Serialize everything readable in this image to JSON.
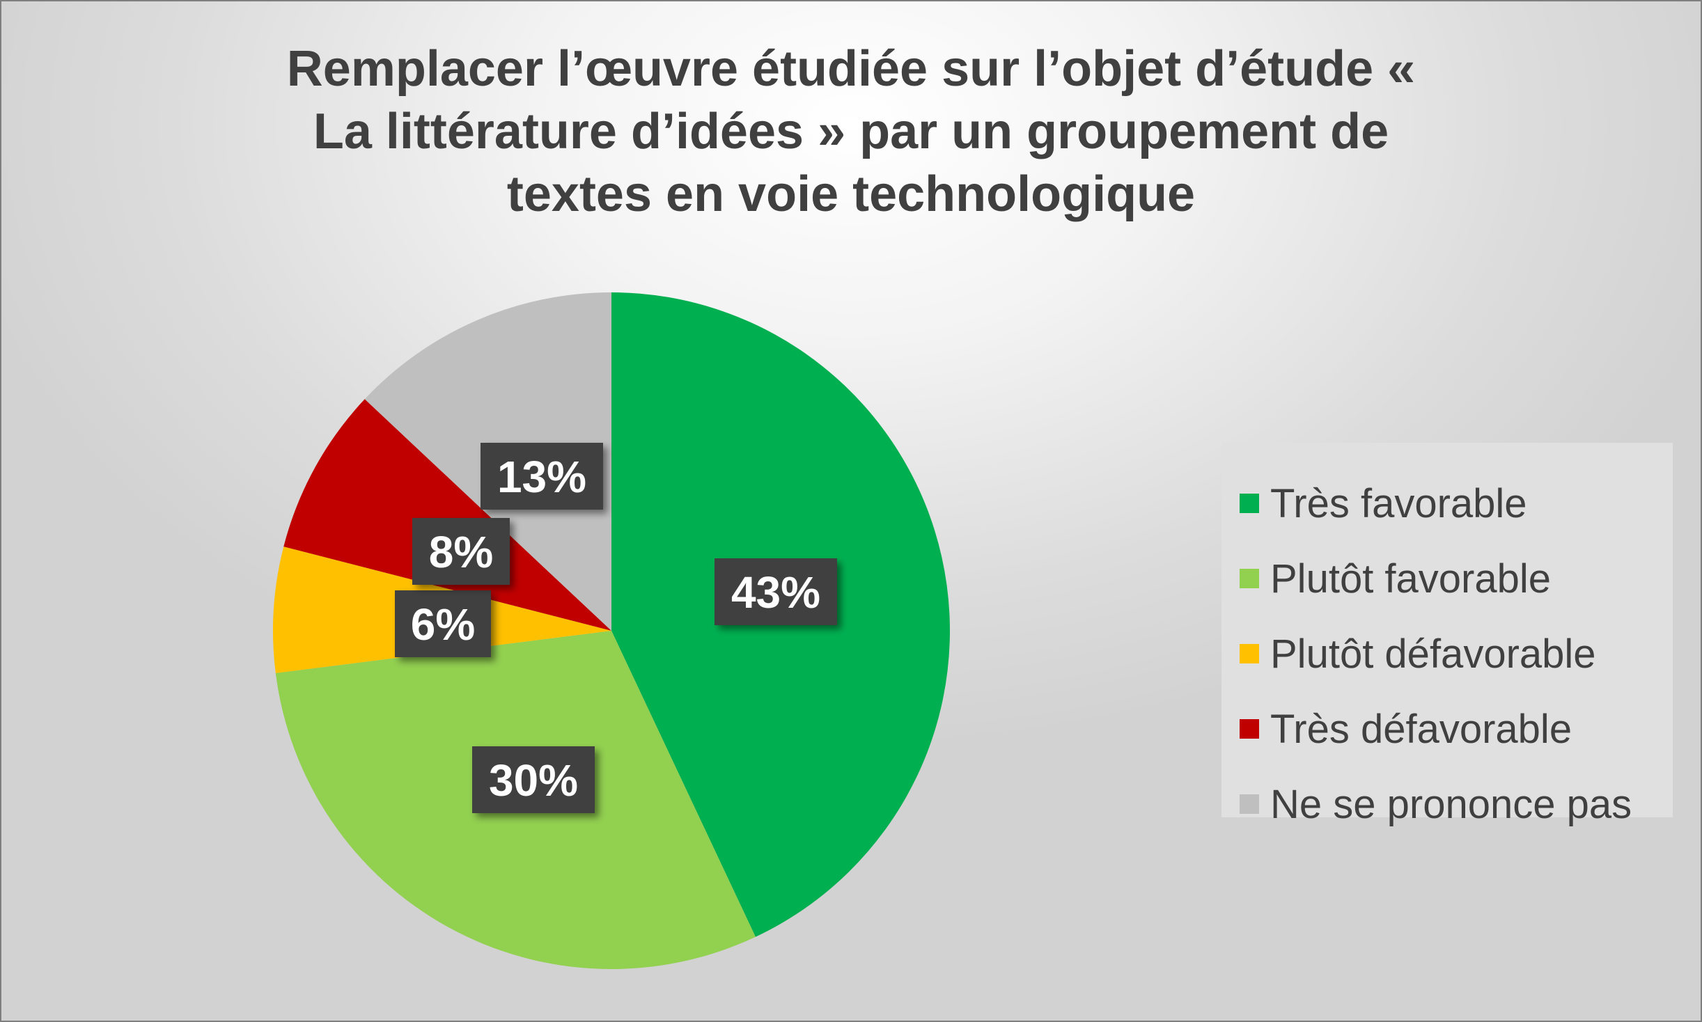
{
  "chart_data": {
    "type": "pie",
    "title": "Remplacer l’œuvre étudiée sur l’objet d’étude « La littérature d’idées » par un groupement de textes en voie technologique",
    "title_lines": [
      "Remplacer l’œuvre étudiée sur l’objet d’étude «",
      "La littérature d’idées » par un groupement de",
      "textes en voie technologique"
    ],
    "categories": [
      "Très favorable",
      "Plutôt favorable",
      "Plutôt défavorable",
      "Très défavorable",
      "Ne se prononce pas"
    ],
    "values": [
      43,
      30,
      6,
      8,
      13
    ],
    "labels": [
      "43%",
      "30%",
      "6%",
      "8%",
      "13%"
    ],
    "colors": [
      "#00b050",
      "#92d050",
      "#ffc000",
      "#c00000",
      "#bfbfbf"
    ],
    "start_angle": "12 o'clock",
    "direction": "clockwise",
    "legend_position": "right",
    "label_box_color": "#404040"
  }
}
